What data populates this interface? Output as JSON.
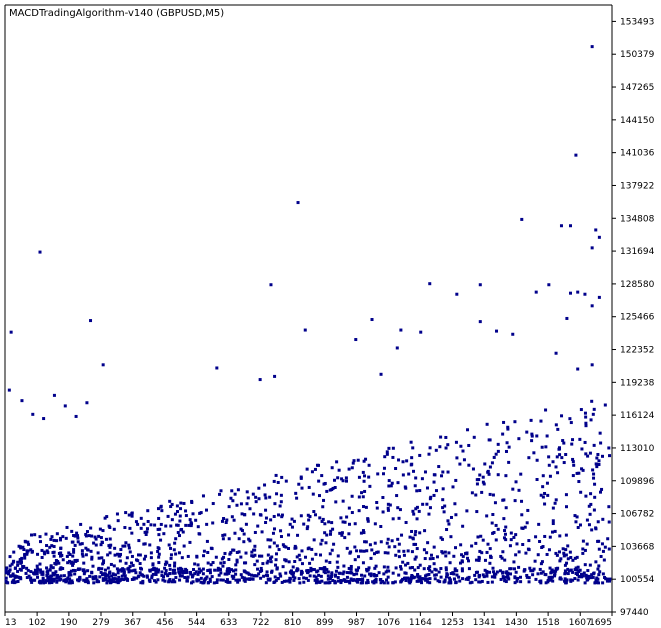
{
  "chart_data": {
    "type": "scatter",
    "title": "MACDTradingAlgorithm-v140 (GBPUSD,M5)",
    "xlabel": "",
    "ylabel": "",
    "x_ticks": [
      "13",
      "102",
      "190",
      "279",
      "367",
      "456",
      "544",
      "633",
      "722",
      "810",
      "899",
      "987",
      "1076",
      "1164",
      "1253",
      "1341",
      "1430",
      "1518",
      "1607",
      "1695"
    ],
    "y_ticks": [
      "153493",
      "150379",
      "147265",
      "144150",
      "141036",
      "137922",
      "134808",
      "131694",
      "128580",
      "125466",
      "122352",
      "119238",
      "116124",
      "113010",
      "109896",
      "106782",
      "103668",
      "100554",
      "97440"
    ],
    "xlim": [
      13,
      1695
    ],
    "ylim": [
      97440,
      155050
    ],
    "grid": false,
    "marker_color": "#00008b",
    "points_note_free": true,
    "outliers": [
      [
        1640,
        151100
      ],
      [
        1595,
        140800
      ],
      [
        825,
        136300
      ],
      [
        1445,
        134700
      ],
      [
        1555,
        134100
      ],
      [
        1580,
        134100
      ],
      [
        1650,
        133700
      ],
      [
        1640,
        132000
      ],
      [
        1660,
        133000
      ],
      [
        110,
        131600
      ],
      [
        30,
        124000
      ],
      [
        250,
        125100
      ],
      [
        750,
        128500
      ],
      [
        1330,
        128500
      ],
      [
        1190,
        128600
      ],
      [
        1520,
        128500
      ],
      [
        1580,
        127700
      ],
      [
        1600,
        127800
      ],
      [
        1620,
        127600
      ],
      [
        1640,
        126500
      ],
      [
        1660,
        127300
      ],
      [
        1485,
        127800
      ],
      [
        1265,
        127600
      ],
      [
        1030,
        125200
      ],
      [
        1110,
        124200
      ],
      [
        845,
        124200
      ],
      [
        985,
        123300
      ],
      [
        1165,
        124000
      ],
      [
        1375,
        124100
      ],
      [
        1420,
        123800
      ],
      [
        1330,
        125000
      ],
      [
        1570,
        125300
      ],
      [
        1540,
        122000
      ],
      [
        1600,
        120500
      ],
      [
        1640,
        120900
      ],
      [
        600,
        120600
      ],
      [
        720,
        119500
      ],
      [
        760,
        119800
      ],
      [
        1055,
        120000
      ],
      [
        1100,
        122500
      ],
      [
        150,
        118000
      ],
      [
        180,
        117000
      ],
      [
        240,
        117300
      ],
      [
        285,
        120900
      ],
      [
        210,
        116000
      ],
      [
        25,
        118500
      ],
      [
        60,
        117500
      ],
      [
        90,
        116200
      ],
      [
        120,
        115800
      ]
    ],
    "series_note": "Dense cloud between 100554 and 118000 across the full x-range"
  },
  "colors": {
    "background": "#ffffff",
    "axis": "#000000",
    "marker": "#00008b"
  }
}
